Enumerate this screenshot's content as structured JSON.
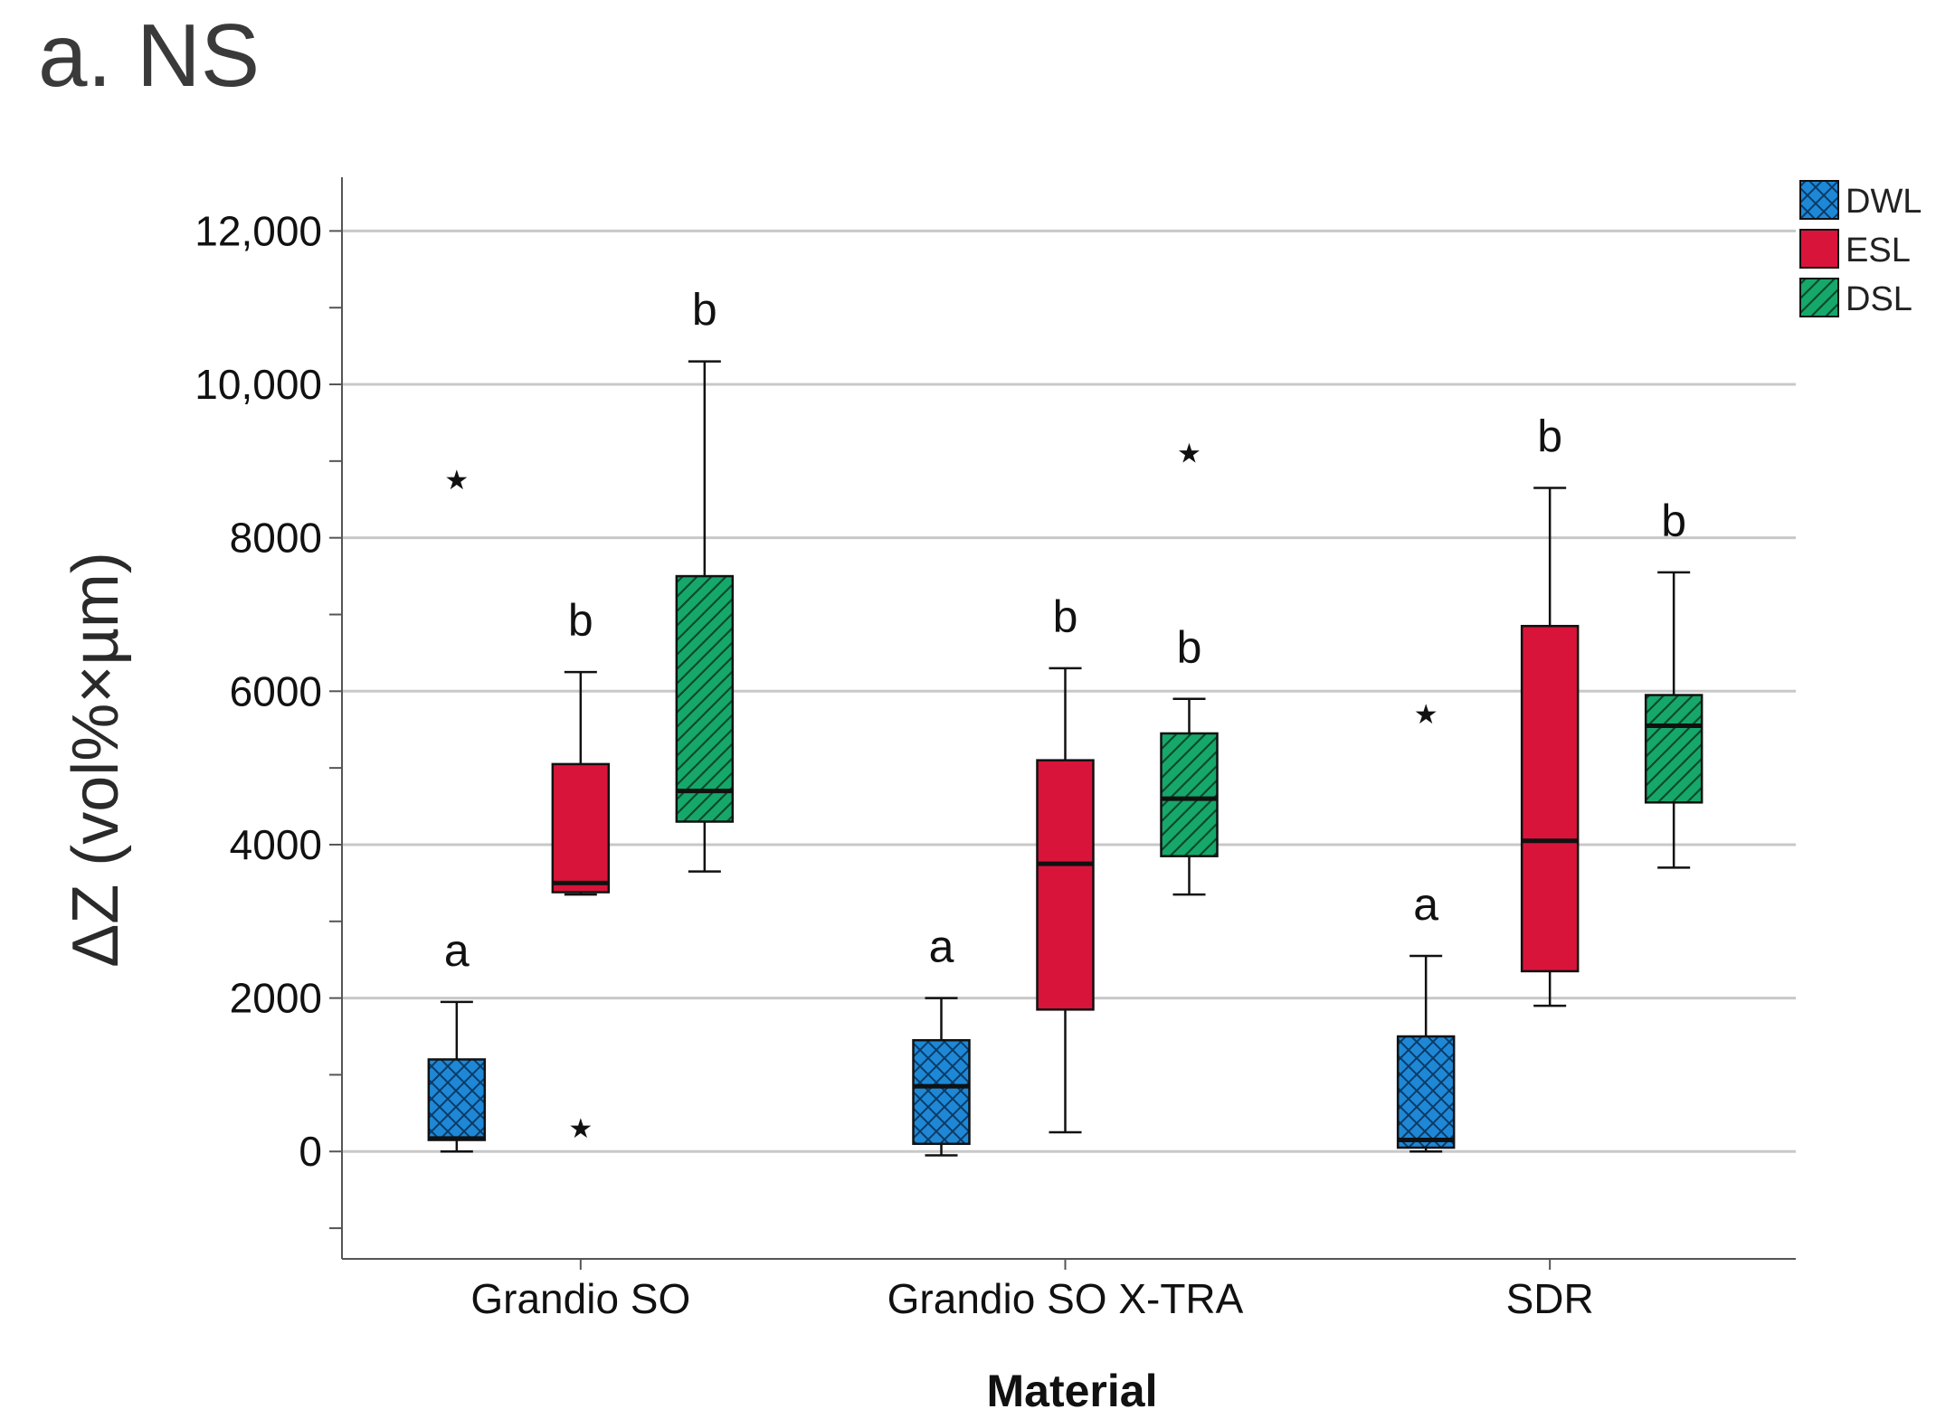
{
  "figure_title": "a. NS",
  "colors": {
    "DWL": "#1e88d6",
    "ESL": "#d9143a",
    "DSL": "#16a86a",
    "grid": "#c8c8c8",
    "axis": "#555555"
  },
  "chart_data": {
    "type": "boxplot",
    "xlabel": "Material",
    "ylabel": "ΔZ (vol%×µm)",
    "ylim": [
      -1400,
      12700
    ],
    "yticks": [
      0,
      2000,
      4000,
      6000,
      8000,
      10000,
      12000
    ],
    "ytick_labels": [
      "0",
      "2000",
      "4000",
      "6000",
      "8000",
      "10,000",
      "12,000"
    ],
    "minor_ticks": [
      -1000,
      1000,
      3000,
      5000,
      7000,
      9000,
      11000
    ],
    "grid": true,
    "legend_position": "top-right",
    "categories": [
      "Grandio SO",
      "Grandio SO X-TRA",
      "SDR"
    ],
    "series": [
      {
        "name": "DWL",
        "pattern": "crosshatch",
        "boxes": [
          {
            "min": 0,
            "q1": 150,
            "median": 170,
            "q3": 1200,
            "max": 1950,
            "outliers": [
              8750
            ],
            "letter": "a"
          },
          {
            "min": -50,
            "q1": 100,
            "median": 850,
            "q3": 1450,
            "max": 2000,
            "outliers": [],
            "letter": "a"
          },
          {
            "min": 0,
            "q1": 50,
            "median": 150,
            "q3": 1500,
            "max": 2550,
            "outliers": [
              5700
            ],
            "letter": "a"
          }
        ]
      },
      {
        "name": "ESL",
        "pattern": "solid",
        "boxes": [
          {
            "min": 3350,
            "q1": 3380,
            "median": 3500,
            "q3": 5050,
            "max": 6250,
            "outliers": [
              300
            ],
            "letter": "b"
          },
          {
            "min": 250,
            "q1": 1850,
            "median": 3750,
            "q3": 5100,
            "max": 6300,
            "outliers": [],
            "letter": "b"
          },
          {
            "min": 1900,
            "q1": 2350,
            "median": 4050,
            "q3": 6850,
            "max": 8650,
            "outliers": [],
            "letter": "b"
          }
        ]
      },
      {
        "name": "DSL",
        "pattern": "diagonal",
        "boxes": [
          {
            "min": 3650,
            "q1": 4300,
            "median": 4700,
            "q3": 7500,
            "max": 10300,
            "outliers": [],
            "letter": "b"
          },
          {
            "min": 3350,
            "q1": 3850,
            "median": 4600,
            "q3": 5450,
            "max": 5900,
            "outliers": [
              9100
            ],
            "letter": "b"
          },
          {
            "min": 3700,
            "q1": 4550,
            "median": 5550,
            "q3": 5950,
            "max": 7550,
            "outliers": [],
            "letter": "b"
          }
        ]
      }
    ]
  }
}
